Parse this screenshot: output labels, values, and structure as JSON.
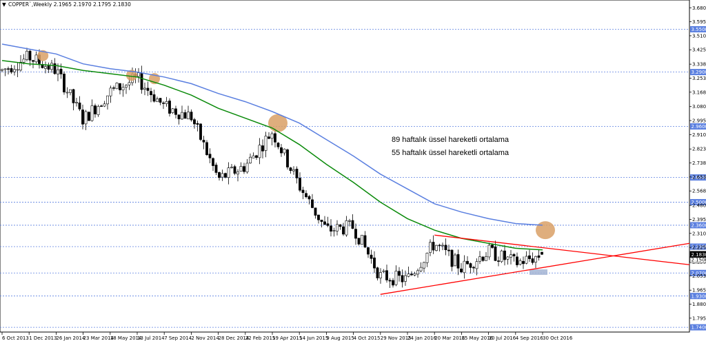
{
  "header": {
    "arrow": "▼",
    "text": "COPPER`,Weekly  2.1965 2.1970 2.1795 2.1830"
  },
  "colors": {
    "ema89": "#0a8a0a",
    "ema55": "#5a7fe0",
    "trend": "#ff0000",
    "grid": "#5a7fe0",
    "level_label_bg": "#5a7fe0",
    "price_label_bg": "#000000",
    "highlight_circle": "#d9a066",
    "highlight_box": "#a3b4d4"
  },
  "annotations": {
    "ema89_label": "89 haftalık üssel hareketli ortalama",
    "ema55_label": "55 haftalık üssel hareketli ortalama"
  },
  "chart_data": {
    "type": "candlestick",
    "symbol": "COPPER`",
    "timeframe": "Weekly",
    "last_bar": {
      "open": 2.1965,
      "high": 2.197,
      "low": 2.1795,
      "close": 2.183
    },
    "ylim": [
      1.7112,
      3.7277
    ],
    "y_ticks": [
      "3.6805",
      "3.5955",
      "3.5105",
      "3.4255",
      "3.3380",
      "3.2530",
      "3.1680",
      "3.0805",
      "2.9955",
      "2.9105",
      "2.8230",
      "2.7380",
      "2.6530",
      "2.5680",
      "2.4805",
      "2.3955",
      "2.3105",
      "2.2255",
      "2.1380",
      "2.0530",
      "1.9655",
      "1.8805",
      "1.7955"
    ],
    "x_ticks": [
      "6 Oct 2013",
      "1 Dec 2013",
      "26 Jan 2014",
      "23 Mar 2014",
      "18 May 2014",
      "13 Jul 2014",
      "7 Sep 2014",
      "2 Nov 2014",
      "28 Dec 2014",
      "22 Feb 2015",
      "19 Apr 2015",
      "14 Jun 2015",
      "9 Aug 2015",
      "4 Oct 2015",
      "29 Nov 2015",
      "24 Jan 2016",
      "20 Mar 2016",
      "15 May 2016",
      "10 Jul 2016",
      "4 Sep 2016",
      "30 Oct 2016"
    ],
    "levels": [
      "3.5500",
      "3.2900",
      "2.9600",
      "2.6500",
      "2.5000",
      "2.3600",
      "2.2300",
      "2.0700",
      "1.9300",
      "1.7400"
    ],
    "current_price": "2.1830",
    "secondary_price": "2.1500",
    "close_path": [
      {
        "x": "6 Oct 2013",
        "y": 3.3
      },
      {
        "x": "1 Dec 2013",
        "y": 3.38
      },
      {
        "x": "26 Jan 2014",
        "y": 3.3
      },
      {
        "x": "23 Mar 2014",
        "y": 3.0
      },
      {
        "x": "18 May 2014",
        "y": 3.17
      },
      {
        "x": "13 Jul 2014",
        "y": 3.25
      },
      {
        "x": "7 Sep 2014",
        "y": 3.08
      },
      {
        "x": "2 Nov 2014",
        "y": 3.02
      },
      {
        "x": "28 Dec 2014",
        "y": 2.64
      },
      {
        "x": "22 Feb 2015",
        "y": 2.72
      },
      {
        "x": "19 Apr 2015",
        "y": 2.93
      },
      {
        "x": "14 Jun 2015",
        "y": 2.6
      },
      {
        "x": "9 Aug 2015",
        "y": 2.33
      },
      {
        "x": "4 Oct 2015",
        "y": 2.35
      },
      {
        "x": "29 Nov 2015",
        "y": 2.05
      },
      {
        "x": "24 Jan 2016",
        "y": 2.03
      },
      {
        "x": "20 Mar 2016",
        "y": 2.25
      },
      {
        "x": "15 May 2016",
        "y": 2.1
      },
      {
        "x": "10 Jul 2016",
        "y": 2.2
      },
      {
        "x": "4 Sep 2016",
        "y": 2.13
      },
      {
        "x": "30 Oct 2016",
        "y": 2.18
      }
    ],
    "series": [
      {
        "name": "89 haftalık üssel hareketli ortalama",
        "points": [
          {
            "x": "6 Oct 2013",
            "y": 3.36
          },
          {
            "x": "1 Dec 2013",
            "y": 3.34
          },
          {
            "x": "26 Jan 2014",
            "y": 3.33
          },
          {
            "x": "23 Mar 2014",
            "y": 3.3
          },
          {
            "x": "18 May 2014",
            "y": 3.28
          },
          {
            "x": "13 Jul 2014",
            "y": 3.26
          },
          {
            "x": "7 Sep 2014",
            "y": 3.21
          },
          {
            "x": "2 Nov 2014",
            "y": 3.15
          },
          {
            "x": "28 Dec 2014",
            "y": 3.07
          },
          {
            "x": "22 Feb 2015",
            "y": 3.01
          },
          {
            "x": "19 Apr 2015",
            "y": 2.95
          },
          {
            "x": "14 Jun 2015",
            "y": 2.85
          },
          {
            "x": "9 Aug 2015",
            "y": 2.73
          },
          {
            "x": "4 Oct 2015",
            "y": 2.62
          },
          {
            "x": "29 Nov 2015",
            "y": 2.5
          },
          {
            "x": "24 Jan 2016",
            "y": 2.4
          },
          {
            "x": "20 Mar 2016",
            "y": 2.33
          },
          {
            "x": "15 May 2016",
            "y": 2.28
          },
          {
            "x": "10 Jul 2016",
            "y": 2.25
          },
          {
            "x": "4 Sep 2016",
            "y": 2.22
          },
          {
            "x": "30 Oct 2016",
            "y": 2.21
          }
        ]
      },
      {
        "name": "55 haftalık üssel hareketli ortalama",
        "points": [
          {
            "x": "6 Oct 2013",
            "y": 3.46
          },
          {
            "x": "1 Dec 2013",
            "y": 3.43
          },
          {
            "x": "26 Jan 2014",
            "y": 3.4
          },
          {
            "x": "23 Mar 2014",
            "y": 3.34
          },
          {
            "x": "18 May 2014",
            "y": 3.31
          },
          {
            "x": "13 Jul 2014",
            "y": 3.29
          },
          {
            "x": "7 Sep 2014",
            "y": 3.26
          },
          {
            "x": "2 Nov 2014",
            "y": 3.22
          },
          {
            "x": "28 Dec 2014",
            "y": 3.16
          },
          {
            "x": "22 Feb 2015",
            "y": 3.11
          },
          {
            "x": "19 Apr 2015",
            "y": 3.05
          },
          {
            "x": "14 Jun 2015",
            "y": 2.98
          },
          {
            "x": "9 Aug 2015",
            "y": 2.88
          },
          {
            "x": "4 Oct 2015",
            "y": 2.78
          },
          {
            "x": "29 Nov 2015",
            "y": 2.67
          },
          {
            "x": "24 Jan 2016",
            "y": 2.58
          },
          {
            "x": "20 Mar 2016",
            "y": 2.49
          },
          {
            "x": "15 May 2016",
            "y": 2.44
          },
          {
            "x": "10 Jul 2016",
            "y": 2.4
          },
          {
            "x": "4 Sep 2016",
            "y": 2.37
          },
          {
            "x": "30 Oct 2016",
            "y": 2.36
          }
        ]
      }
    ],
    "trendlines": [
      {
        "name": "upper-resistance",
        "from": {
          "x": "20 Mar 2016",
          "y": 2.3
        },
        "to": {
          "x": "end",
          "y": 2.12
        }
      },
      {
        "name": "lower-support",
        "from": {
          "x": "29 Nov 2015",
          "y": 1.94
        },
        "to": {
          "x": "end",
          "y": 2.25
        }
      }
    ],
    "highlight_circles": [
      {
        "x": "1 Dec 2013",
        "y": 3.39
      },
      {
        "x": "13 Jul 2014",
        "y": 3.27
      },
      {
        "x": "13 Jul 2014",
        "y": 3.25
      },
      {
        "x": "19 Apr 2015",
        "y": 2.98
      },
      {
        "x": "30 Oct 2016",
        "y": 2.33
      }
    ],
    "highlight_box": {
      "x": "30 Oct 2016",
      "y": 2.075
    }
  }
}
